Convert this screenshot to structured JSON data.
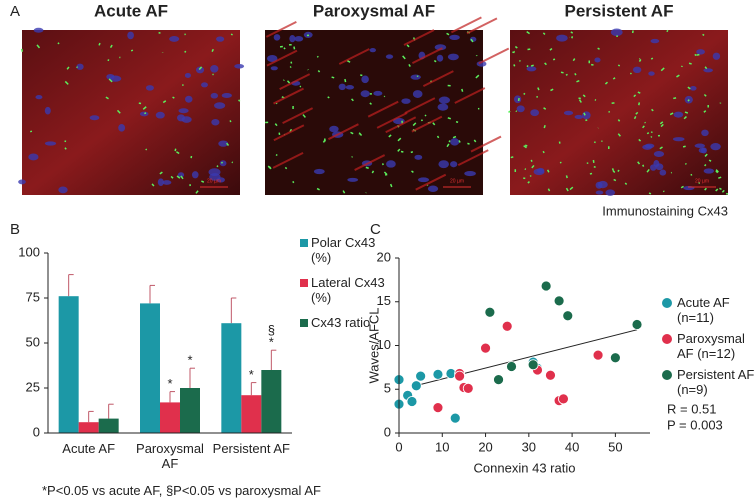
{
  "panel_a": {
    "label": "A",
    "images": [
      {
        "title": "Acute AF",
        "scale": "20 µm"
      },
      {
        "title": "Paroxysmal AF",
        "scale": "20 µm"
      },
      {
        "title": "Persistent AF",
        "scale": "20 µm"
      }
    ],
    "caption": "Immunostaining Cx43"
  },
  "chart_data": [
    {
      "type": "bar",
      "panel": "B",
      "categories": [
        "Acute AF",
        "Paroxysmal AF",
        "Persistent AF"
      ],
      "series": [
        {
          "name": "Polar Cx43 (%)",
          "color": "#1c98a6",
          "values": [
            76,
            72,
            61
          ],
          "errors": [
            12,
            10,
            14
          ],
          "marks": [
            null,
            null,
            null
          ]
        },
        {
          "name": "Lateral Cx43 (%)",
          "color": "#e0304c",
          "values": [
            6,
            17,
            21
          ],
          "errors": [
            6,
            6,
            7
          ],
          "marks": [
            null,
            [
              "*"
            ],
            [
              "*"
            ]
          ]
        },
        {
          "name": "Cx43 ratio",
          "color": "#1b6b4c",
          "values": [
            8,
            25,
            35
          ],
          "errors": [
            8,
            11,
            11
          ],
          "marks": [
            null,
            [
              "*"
            ],
            [
              "§",
              "*"
            ]
          ]
        }
      ],
      "ylim": [
        0,
        100
      ],
      "yticks": [
        0,
        25,
        50,
        75,
        100
      ],
      "footnote": "*P<0.05 vs acute AF, §P<0.05 vs paroxysmal AF"
    },
    {
      "type": "scatter",
      "panel": "C",
      "xlabel": "Connexin 43 ratio",
      "ylabel": "Waves/AFCL",
      "series": [
        {
          "name": "Acute AF (n=11)",
          "color": "#1c98a6",
          "x": [
            0,
            0,
            2,
            3,
            4,
            5,
            9,
            12,
            13,
            31,
            32
          ],
          "values": [
            6.1,
            3.3,
            4.3,
            3.6,
            5.4,
            6.5,
            6.7,
            6.8,
            1.7,
            8.1,
            7.4
          ]
        },
        {
          "name": "Paroxysmal AF (n=12)",
          "color": "#e0304c",
          "x": [
            9,
            14,
            14,
            15,
            16,
            20,
            25,
            32,
            35,
            37,
            38,
            46
          ],
          "values": [
            2.9,
            6.8,
            6.5,
            5.2,
            5.1,
            9.7,
            12.2,
            7.2,
            6.6,
            3.7,
            3.9,
            8.9
          ]
        },
        {
          "name": "Persistent AF (n=9)",
          "color": "#1b6b4c",
          "x": [
            21,
            23,
            26,
            31,
            34,
            37,
            39,
            50,
            55
          ],
          "values": [
            13.8,
            6.1,
            7.6,
            7.8,
            16.8,
            15.1,
            13.4,
            8.6,
            12.4
          ]
        }
      ],
      "fit": {
        "x": [
          3,
          55
        ],
        "y": [
          5.3,
          11.8
        ]
      },
      "stats": [
        "R = 0.51",
        "P = 0.003"
      ],
      "xlim": [
        0,
        58
      ],
      "xticks": [
        0,
        10,
        20,
        30,
        40,
        50
      ],
      "ylim": [
        0,
        20
      ],
      "yticks": [
        0,
        5,
        10,
        15,
        20
      ]
    }
  ]
}
